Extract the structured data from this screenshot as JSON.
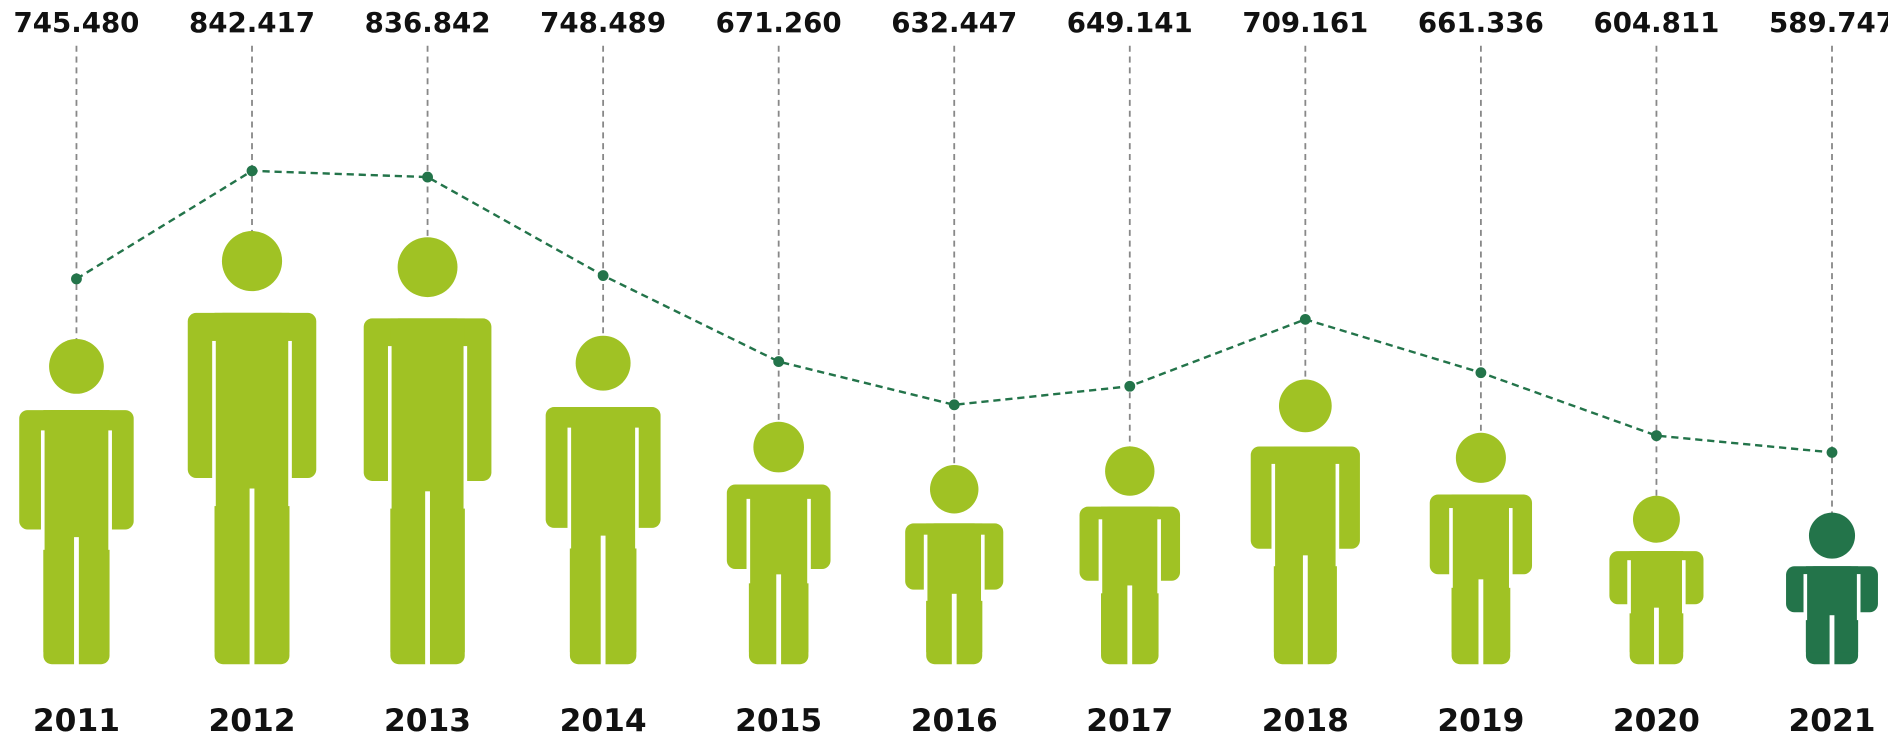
{
  "chart_data": {
    "type": "pictogram",
    "categories": [
      "2011",
      "2012",
      "2013",
      "2014",
      "2015",
      "2016",
      "2017",
      "2018",
      "2019",
      "2020",
      "2021"
    ],
    "values": [
      745480,
      842417,
      836842,
      748489,
      671260,
      632447,
      649141,
      709161,
      661336,
      604811,
      589747
    ],
    "value_labels": [
      "745.480",
      "842.417",
      "836.842",
      "748.489",
      "671.260",
      "632.447",
      "649.141",
      "709.161",
      "661.336",
      "604.811",
      "589.747"
    ],
    "colors": [
      "#a0c224",
      "#a0c224",
      "#a0c224",
      "#a0c224",
      "#a0c224",
      "#a0c224",
      "#a0c224",
      "#a0c224",
      "#a0c224",
      "#a0c224",
      "#23744a"
    ],
    "line_color": "#23744a"
  }
}
